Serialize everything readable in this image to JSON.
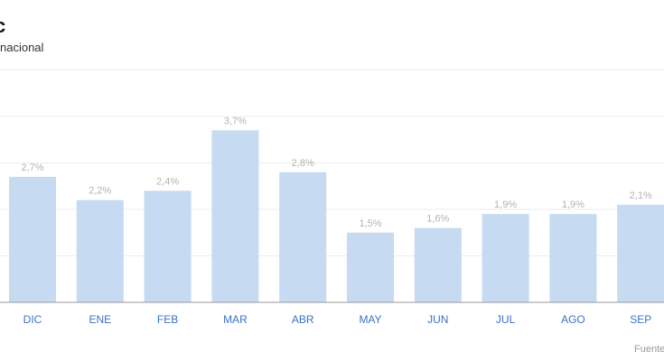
{
  "header": {
    "title": "c",
    "subtitle": "nacional"
  },
  "footer": {
    "source": "Fuente"
  },
  "colors": {
    "bar": "#c6daf2",
    "grid": "#ececec",
    "baseline": "#9a9a9a",
    "tick_label": "#3b72c4",
    "value_label": "#b3b3b3"
  },
  "chart_data": {
    "type": "bar",
    "categories": [
      "DIC",
      "ENE",
      "FEB",
      "MAR",
      "ABR",
      "MAY",
      "JUN",
      "JUL",
      "AGO",
      "SEP"
    ],
    "values": [
      2.7,
      2.2,
      2.4,
      3.7,
      2.8,
      1.5,
      1.6,
      1.9,
      1.9,
      2.1
    ],
    "value_labels": [
      "2,7%",
      "2,2%",
      "2,4%",
      "3,7%",
      "2,8%",
      "1,5%",
      "1,6%",
      "1,9%",
      "1,9%",
      "2,1%"
    ],
    "ylim": [
      0,
      5
    ],
    "grid": true
  }
}
